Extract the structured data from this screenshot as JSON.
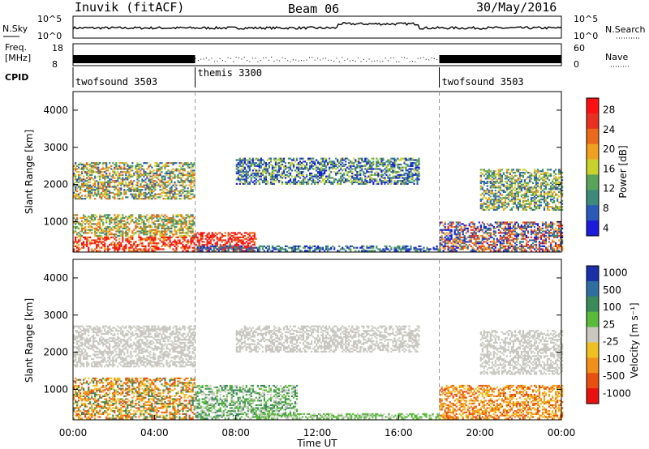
{
  "header": {
    "radar": "Inuvik (fitACF)",
    "beam": "Beam 06",
    "date": "30/May/2016"
  },
  "top_panels": {
    "nsky_label": "N.Sky",
    "nsky_ticks": [
      "10^5",
      "10^0"
    ],
    "nsearch_label": "N.Search",
    "nsearch_ticks": [
      "10^5",
      "10^0"
    ],
    "freq_label": "Freq.",
    "freq_unit": "[MHz]",
    "freq_ticks": [
      "18",
      "8"
    ],
    "nave_label": "Nave",
    "nave_ticks": [
      "60",
      "0"
    ],
    "cpid_label": "CPID",
    "cpid_segments": [
      {
        "name": "twofsound 3503",
        "start_hr": 0,
        "end_hr": 6
      },
      {
        "name": "themis 3300",
        "start_hr": 6,
        "end_hr": 18
      },
      {
        "name": "twofsound 3503",
        "start_hr": 18,
        "end_hr": 24
      }
    ]
  },
  "chart_data": [
    {
      "type": "heatmap",
      "name": "power",
      "ylabel": "Slant Range [km]",
      "yticks": [
        "4000",
        "3000",
        "2000",
        "1000"
      ],
      "colorbar_label": "Power [dB]",
      "colorbar_ticks": [
        "28",
        "24",
        "20",
        "16",
        "12",
        "8",
        "4"
      ],
      "colors": [
        "#1b1bd9",
        "#2a5ab8",
        "#3b8a7a",
        "#5aa35a",
        "#c8d22a",
        "#f0a020",
        "#e86a1a",
        "#e83020",
        "#ff1010"
      ]
    },
    {
      "type": "heatmap",
      "name": "velocity",
      "ylabel": "Slant Range [km]",
      "yticks": [
        "4000",
        "3000",
        "2000",
        "1000"
      ],
      "colorbar_label": "Velocity [m s⁻¹]",
      "colorbar_ticks": [
        "1000",
        "500",
        "100",
        "25",
        "-25",
        "-100",
        "-500",
        "-1000"
      ],
      "colors": [
        "#1a2fa8",
        "#2f6fa0",
        "#3a8a5a",
        "#5aba3a",
        "#c8c8c0",
        "#f0c020",
        "#f0901a",
        "#e85010",
        "#e81010"
      ],
      "xlabel": "Time UT",
      "xticks": [
        "00:00",
        "04:00",
        "08:00",
        "12:00",
        "16:00",
        "20:00",
        "00:00"
      ]
    }
  ]
}
